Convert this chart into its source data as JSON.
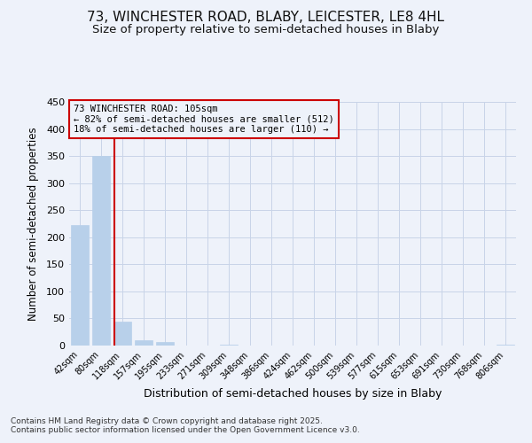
{
  "title1": "73, WINCHESTER ROAD, BLABY, LEICESTER, LE8 4HL",
  "title2": "Size of property relative to semi-detached houses in Blaby",
  "xlabel": "Distribution of semi-detached houses by size in Blaby",
  "ylabel": "Number of semi-detached properties",
  "categories": [
    "42sqm",
    "80sqm",
    "118sqm",
    "157sqm",
    "195sqm",
    "233sqm",
    "271sqm",
    "309sqm",
    "348sqm",
    "386sqm",
    "424sqm",
    "462sqm",
    "500sqm",
    "539sqm",
    "577sqm",
    "615sqm",
    "653sqm",
    "691sqm",
    "730sqm",
    "768sqm",
    "806sqm"
  ],
  "values": [
    222,
    350,
    45,
    10,
    6,
    0,
    0,
    2,
    0,
    0,
    0,
    0,
    0,
    0,
    0,
    0,
    0,
    0,
    0,
    0,
    2
  ],
  "bar_color": "#b8d0ea",
  "bar_edge_color": "#b8d0ea",
  "vline_x": 1.62,
  "vline_color": "#cc0000",
  "ylim": [
    0,
    450
  ],
  "yticks": [
    0,
    50,
    100,
    150,
    200,
    250,
    300,
    350,
    400,
    450
  ],
  "annotation_title": "73 WINCHESTER ROAD: 105sqm",
  "annotation_line1": "← 82% of semi-detached houses are smaller (512)",
  "annotation_line2": "18% of semi-detached houses are larger (110) →",
  "annotation_box_color": "#cc0000",
  "grid_color": "#c8d4e8",
  "bg_color": "#eef2fa",
  "title1_fontsize": 11,
  "title2_fontsize": 9.5,
  "footer": "Contains HM Land Registry data © Crown copyright and database right 2025.\nContains public sector information licensed under the Open Government Licence v3.0."
}
